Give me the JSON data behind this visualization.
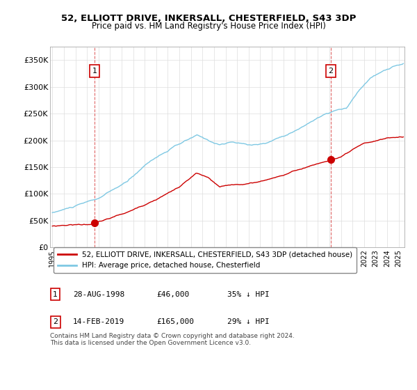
{
  "title": "52, ELLIOTT DRIVE, INKERSALL, CHESTERFIELD, S43 3DP",
  "subtitle": "Price paid vs. HM Land Registry's House Price Index (HPI)",
  "ylabel_ticks": [
    "£0",
    "£50K",
    "£100K",
    "£150K",
    "£200K",
    "£250K",
    "£300K",
    "£350K"
  ],
  "ytick_values": [
    0,
    50000,
    100000,
    150000,
    200000,
    250000,
    300000,
    350000
  ],
  "ylim": [
    0,
    375000
  ],
  "xlim_start": 1994.8,
  "xlim_end": 2025.5,
  "hpi_color": "#7ec8e3",
  "price_color": "#cc0000",
  "marker1_year": 1998.65,
  "marker1_price": 46000,
  "marker2_year": 2019.12,
  "marker2_price": 165000,
  "legend_label1": "52, ELLIOTT DRIVE, INKERSALL, CHESTERFIELD, S43 3DP (detached house)",
  "legend_label2": "HPI: Average price, detached house, Chesterfield",
  "annotation1": [
    "1",
    "28-AUG-1998",
    "£46,000",
    "35% ↓ HPI"
  ],
  "annotation2": [
    "2",
    "14-FEB-2019",
    "£165,000",
    "29% ↓ HPI"
  ],
  "footnote": "Contains HM Land Registry data © Crown copyright and database right 2024.\nThis data is licensed under the Open Government Licence v3.0.",
  "background_color": "#ffffff",
  "grid_color": "#dddddd",
  "num_box_color": "#cc0000"
}
